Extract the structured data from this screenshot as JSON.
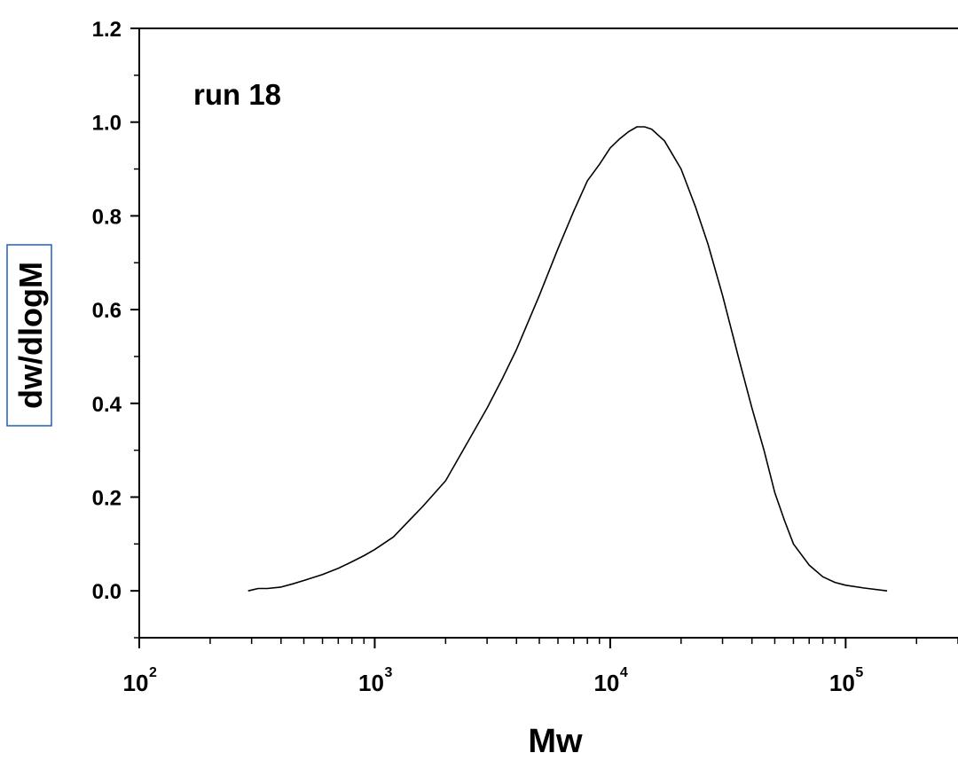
{
  "chart_data": {
    "type": "line",
    "annotation": "run 18",
    "xlabel": "Mw",
    "ylabel": "dw/dlogM",
    "x_scale": "log",
    "xlim": [
      100,
      300000
    ],
    "ylim": [
      -0.1,
      1.2
    ],
    "y_ticks": [
      "0.0",
      "0.2",
      "0.4",
      "0.6",
      "0.8",
      "1.0",
      "1.2"
    ],
    "y_tick_values": [
      0.0,
      0.2,
      0.4,
      0.6,
      0.8,
      1.0,
      1.2
    ],
    "x_tick_values": [
      100,
      1000,
      10000,
      100000
    ],
    "x_tick_labels": [
      {
        "base": "10",
        "exp": "2"
      },
      {
        "base": "10",
        "exp": "3"
      },
      {
        "base": "10",
        "exp": "4"
      },
      {
        "base": "10",
        "exp": "5"
      }
    ],
    "grid": false,
    "line_color": "#000000",
    "ylabel_box_color": "#1f5fbf",
    "series": [
      {
        "x": [
          290,
          320,
          350,
          400,
          450,
          500,
          600,
          700,
          800,
          900,
          1000,
          1200,
          1400,
          1600,
          2000,
          2500,
          3000,
          3500,
          4000,
          5000,
          6000,
          7000,
          8000,
          9000,
          10000,
          11000,
          12000,
          13000,
          14000,
          15000,
          17000,
          20000,
          23000,
          26000,
          30000,
          35000,
          40000,
          45000,
          50000,
          55000,
          60000,
          70000,
          80000,
          90000,
          100000,
          120000,
          150000
        ],
        "y": [
          0.0,
          0.005,
          0.005,
          0.008,
          0.015,
          0.022,
          0.035,
          0.048,
          0.062,
          0.075,
          0.088,
          0.115,
          0.15,
          0.18,
          0.235,
          0.32,
          0.39,
          0.455,
          0.515,
          0.63,
          0.73,
          0.81,
          0.875,
          0.91,
          0.945,
          0.965,
          0.98,
          0.99,
          0.99,
          0.985,
          0.96,
          0.9,
          0.82,
          0.74,
          0.63,
          0.5,
          0.39,
          0.3,
          0.21,
          0.15,
          0.1,
          0.055,
          0.03,
          0.018,
          0.012,
          0.006,
          0.0
        ]
      }
    ]
  }
}
